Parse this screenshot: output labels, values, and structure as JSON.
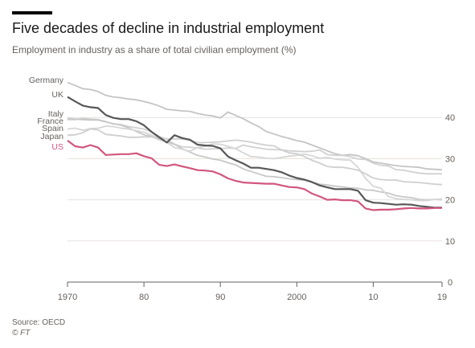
{
  "header": {
    "title": "Five decades of decline in industrial employment",
    "subtitle": "Employment in industry as a share of total civilian employment (%)"
  },
  "footer": {
    "source": "Source: OECD",
    "copyright": "© FT"
  },
  "colors": {
    "background": "#ffffff",
    "grid": "#e6e1dc",
    "axis": "#66605c",
    "germany": "#c4c4c4",
    "uk": "#575757",
    "italy": "#d1d1d1",
    "france": "#c8c8c8",
    "spain": "#d6d6d6",
    "japan": "#cfcfcf",
    "us": "#d1567d",
    "label_grey": "#66605c",
    "label_us": "#d1567d"
  },
  "chart_data": {
    "type": "line",
    "title": "Five decades of decline in industrial employment",
    "subtitle": "Employment in industry as a share of total civilian employment (%)",
    "xlabel": "",
    "ylabel": "",
    "x": [
      1970,
      1971,
      1972,
      1973,
      1974,
      1975,
      1976,
      1977,
      1978,
      1979,
      1980,
      1981,
      1982,
      1983,
      1984,
      1985,
      1986,
      1987,
      1988,
      1989,
      1990,
      1991,
      1992,
      1993,
      1994,
      1995,
      1996,
      1997,
      1998,
      1999,
      2000,
      2001,
      2002,
      2003,
      2004,
      2005,
      2006,
      2007,
      2008,
      2009,
      2010,
      2011,
      2012,
      2013,
      2014,
      2015,
      2016,
      2017,
      2018,
      2019
    ],
    "x_ticks": [
      1970,
      1980,
      1990,
      2000,
      2010,
      2019
    ],
    "x_tick_labels": [
      "1970",
      "80",
      "90",
      "2000",
      "10",
      "19"
    ],
    "y_ticks": [
      0,
      10,
      20,
      30,
      40
    ],
    "y_tick_labels": [
      "0",
      "10",
      "20",
      "30",
      "40"
    ],
    "ylim": [
      0,
      50
    ],
    "grid": true,
    "series": [
      {
        "name": "Germany",
        "color_key": "germany",
        "values": [
          48.5,
          47.8,
          47.0,
          46.8,
          46.3,
          45.4,
          45.0,
          44.8,
          44.5,
          44.3,
          43.9,
          43.4,
          42.8,
          42.0,
          41.8,
          41.6,
          41.5,
          41.0,
          40.6,
          40.4,
          39.9,
          41.3,
          40.5,
          39.7,
          38.7,
          37.8,
          36.6,
          36.0,
          35.4,
          34.9,
          34.4,
          34.0,
          33.3,
          32.6,
          31.9,
          31.2,
          30.8,
          31.0,
          30.7,
          30.0,
          29.2,
          28.9,
          28.6,
          28.3,
          28.1,
          28.0,
          27.9,
          27.5,
          27.4,
          27.3
        ]
      },
      {
        "name": "UK",
        "color_key": "uk",
        "values": [
          45.0,
          43.9,
          42.9,
          42.5,
          42.3,
          40.6,
          39.9,
          39.6,
          39.6,
          39.1,
          38.1,
          36.5,
          35.2,
          33.9,
          35.7,
          35.0,
          34.6,
          33.4,
          33.2,
          33.1,
          32.5,
          30.5,
          29.6,
          28.8,
          27.8,
          27.8,
          27.5,
          27.2,
          26.7,
          25.9,
          25.3,
          24.9,
          24.3,
          23.5,
          23.0,
          22.6,
          22.6,
          22.6,
          22.2,
          19.9,
          19.3,
          19.2,
          19.0,
          18.8,
          18.9,
          18.8,
          18.5,
          18.3,
          18.1,
          18.1
        ]
      },
      {
        "name": "Italy",
        "color_key": "italy",
        "values": [
          39.5,
          39.5,
          39.8,
          39.6,
          39.5,
          39.0,
          38.4,
          38.3,
          37.8,
          37.5,
          37.2,
          36.5,
          35.4,
          34.7,
          33.5,
          32.9,
          32.8,
          32.6,
          32.3,
          32.4,
          32.4,
          32.6,
          32.5,
          33.3,
          32.9,
          32.6,
          32.3,
          32.2,
          32.1,
          31.9,
          31.8,
          31.7,
          31.8,
          32.1,
          31.0,
          30.8,
          30.8,
          30.5,
          29.9,
          29.8,
          28.9,
          28.4,
          28.2,
          27.3,
          27.2,
          26.8,
          26.5,
          26.3,
          26.3,
          26.3
        ]
      },
      {
        "name": "France",
        "color_key": "france",
        "values": [
          39.8,
          39.6,
          39.5,
          39.4,
          39.4,
          38.9,
          38.5,
          38.1,
          37.5,
          36.6,
          35.8,
          35.4,
          34.6,
          34.1,
          33.5,
          32.4,
          31.6,
          30.8,
          30.4,
          29.9,
          29.6,
          29.0,
          28.5,
          27.5,
          26.9,
          26.3,
          25.7,
          25.6,
          25.4,
          25.1,
          24.9,
          24.8,
          24.3,
          23.8,
          23.6,
          23.3,
          23.1,
          22.9,
          22.8,
          22.4,
          22.3,
          21.9,
          21.6,
          21.0,
          20.7,
          20.5,
          20.1,
          20.0,
          20.1,
          20.0
        ]
      },
      {
        "name": "Spain",
        "color_key": "spain",
        "values": [
          37.2,
          37.4,
          36.9,
          37.3,
          37.4,
          37.9,
          37.8,
          37.4,
          37.2,
          36.8,
          36.4,
          35.7,
          34.9,
          34.0,
          32.7,
          32.3,
          31.8,
          32.7,
          33.0,
          33.6,
          33.5,
          33.0,
          32.4,
          31.4,
          30.5,
          30.4,
          30.1,
          30.0,
          30.3,
          30.6,
          30.8,
          31.1,
          30.7,
          30.1,
          30.3,
          29.9,
          29.7,
          29.6,
          27.9,
          25.2,
          23.3,
          22.8,
          20.8,
          20.3,
          20.1,
          20.0,
          19.8,
          19.8,
          20.1,
          20.2
        ]
      },
      {
        "name": "Japan",
        "color_key": "japan",
        "values": [
          35.7,
          35.8,
          36.3,
          37.2,
          37.0,
          35.9,
          35.7,
          35.5,
          35.2,
          35.2,
          35.3,
          35.3,
          34.9,
          34.8,
          34.8,
          34.8,
          34.5,
          33.9,
          33.9,
          34.0,
          34.1,
          34.3,
          34.5,
          34.3,
          34.0,
          33.6,
          33.3,
          33.1,
          32.1,
          31.4,
          31.2,
          30.5,
          29.6,
          28.9,
          28.1,
          27.9,
          27.9,
          27.6,
          27.2,
          26.3,
          25.3,
          24.9,
          24.8,
          24.8,
          24.4,
          24.3,
          24.2,
          24.0,
          23.8,
          23.7
        ]
      },
      {
        "name": "US",
        "color_key": "us",
        "values": [
          34.4,
          33.0,
          32.7,
          33.3,
          32.7,
          30.9,
          31.0,
          31.1,
          31.1,
          31.3,
          30.6,
          30.1,
          28.5,
          28.2,
          28.6,
          28.1,
          27.7,
          27.2,
          27.1,
          26.9,
          26.2,
          25.2,
          24.6,
          24.2,
          24.1,
          24.0,
          23.9,
          23.9,
          23.5,
          23.1,
          23.0,
          22.6,
          21.5,
          20.8,
          20.0,
          20.1,
          19.9,
          19.9,
          19.6,
          17.9,
          17.5,
          17.6,
          17.6,
          17.7,
          17.9,
          18.0,
          17.9,
          17.9,
          18.0,
          18.0
        ]
      }
    ],
    "legend": {
      "placement": "left-labels",
      "entries": [
        "Germany",
        "UK",
        "Italy",
        "France",
        "Spain",
        "Japan",
        "US"
      ]
    }
  }
}
